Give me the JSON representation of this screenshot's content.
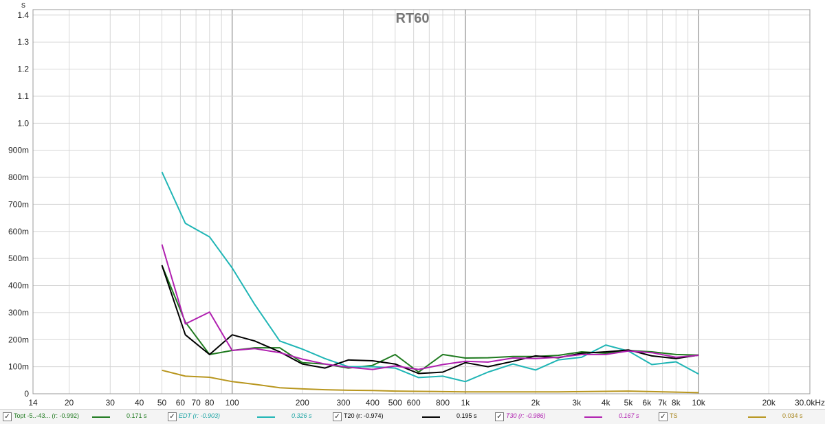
{
  "chart_data": {
    "type": "line",
    "title": "RT60",
    "ylabel": "s",
    "xlabel": "",
    "x_scale": "log",
    "xlim": [
      14,
      30000
    ],
    "ylim": [
      0,
      1.42
    ],
    "grid": true,
    "x_ticks": [
      {
        "v": 14,
        "label": "14"
      },
      {
        "v": 20,
        "label": "20"
      },
      {
        "v": 30,
        "label": "30"
      },
      {
        "v": 40,
        "label": "40"
      },
      {
        "v": 50,
        "label": "50"
      },
      {
        "v": 60,
        "label": "60"
      },
      {
        "v": 70,
        "label": "70"
      },
      {
        "v": 80,
        "label": "80"
      },
      {
        "v": 100,
        "label": "100"
      },
      {
        "v": 200,
        "label": "200"
      },
      {
        "v": 300,
        "label": "300"
      },
      {
        "v": 400,
        "label": "400"
      },
      {
        "v": 500,
        "label": "500"
      },
      {
        "v": 600,
        "label": "600"
      },
      {
        "v": 800,
        "label": "800"
      },
      {
        "v": 1000,
        "label": "1k"
      },
      {
        "v": 2000,
        "label": "2k"
      },
      {
        "v": 3000,
        "label": "3k"
      },
      {
        "v": 4000,
        "label": "4k"
      },
      {
        "v": 5000,
        "label": "5k"
      },
      {
        "v": 6000,
        "label": "6k"
      },
      {
        "v": 7000,
        "label": "7k"
      },
      {
        "v": 8000,
        "label": "8k"
      },
      {
        "v": 10000,
        "label": "10k"
      },
      {
        "v": 20000,
        "label": "20k"
      },
      {
        "v": 30000,
        "label": "30.0kHz"
      }
    ],
    "y_ticks": [
      {
        "v": 0,
        "label": "0"
      },
      {
        "v": 0.1,
        "label": "100m"
      },
      {
        "v": 0.2,
        "label": "200m"
      },
      {
        "v": 0.3,
        "label": "300m"
      },
      {
        "v": 0.4,
        "label": "400m"
      },
      {
        "v": 0.5,
        "label": "500m"
      },
      {
        "v": 0.6,
        "label": "600m"
      },
      {
        "v": 0.7,
        "label": "700m"
      },
      {
        "v": 0.8,
        "label": "800m"
      },
      {
        "v": 0.9,
        "label": "900m"
      },
      {
        "v": 1.0,
        "label": "1.0"
      },
      {
        "v": 1.1,
        "label": "1.1"
      },
      {
        "v": 1.2,
        "label": "1.2"
      },
      {
        "v": 1.3,
        "label": "1.3"
      },
      {
        "v": 1.4,
        "label": "1.4"
      }
    ],
    "x": [
      50,
      63,
      80,
      100,
      125,
      160,
      200,
      250,
      315,
      400,
      500,
      630,
      800,
      1000,
      1250,
      1600,
      2000,
      2500,
      3150,
      4000,
      5000,
      6300,
      8000,
      10000
    ],
    "series": [
      {
        "name": "Topt -5..-43...",
        "color": "#1f7a1f",
        "values": [
          0.475,
          0.265,
          0.145,
          0.16,
          0.17,
          0.17,
          0.115,
          0.11,
          0.095,
          0.105,
          0.145,
          0.08,
          0.145,
          0.132,
          0.133,
          0.138,
          0.138,
          0.142,
          0.155,
          0.15,
          0.16,
          0.155,
          0.145,
          0.143
        ]
      },
      {
        "name": "EDT",
        "color": "#1fb5b5",
        "values": [
          0.82,
          0.63,
          0.58,
          0.465,
          0.33,
          0.195,
          0.165,
          0.13,
          0.1,
          0.1,
          0.095,
          0.06,
          0.065,
          0.045,
          0.08,
          0.11,
          0.088,
          0.125,
          0.135,
          0.18,
          0.158,
          0.108,
          0.118,
          0.073
        ]
      },
      {
        "name": "T20",
        "color": "#000000",
        "values": [
          0.475,
          0.218,
          0.145,
          0.218,
          0.195,
          0.155,
          0.11,
          0.095,
          0.125,
          0.122,
          0.11,
          0.075,
          0.08,
          0.115,
          0.1,
          0.12,
          0.14,
          0.133,
          0.15,
          0.155,
          0.162,
          0.14,
          0.13,
          0.143
        ]
      },
      {
        "name": "T30",
        "color": "#b020b0",
        "values": [
          0.552,
          0.258,
          0.302,
          0.16,
          0.167,
          0.152,
          0.128,
          0.11,
          0.098,
          0.09,
          0.103,
          0.09,
          0.108,
          0.12,
          0.117,
          0.132,
          0.13,
          0.135,
          0.145,
          0.145,
          0.158,
          0.152,
          0.135,
          0.142
        ]
      },
      {
        "name": "TS",
        "color": "#b8961e",
        "values": [
          0.087,
          0.065,
          0.061,
          0.045,
          0.035,
          0.022,
          0.018,
          0.015,
          0.013,
          0.012,
          0.01,
          0.009,
          0.008,
          0.007,
          0.007,
          0.007,
          0.007,
          0.007,
          0.008,
          0.009,
          0.01,
          0.008,
          0.006,
          0.004
        ]
      }
    ]
  },
  "legend": {
    "check_glyph": "✓",
    "items": [
      {
        "label": "Topt -5..-43...",
        "stat": "(r: -0.992)",
        "value": "0.171 s",
        "color": "#1f7a1f",
        "text_color": "#1f7a1f",
        "italic": false
      },
      {
        "label": "EDT",
        "stat": "(r: -0.903)",
        "value": "0.326 s",
        "color": "#1fb5b5",
        "text_color": "#1fa5a5",
        "italic": true
      },
      {
        "label": "T20",
        "stat": "(r: -0.974)",
        "value": "0.195 s",
        "color": "#000000",
        "text_color": "#000000",
        "italic": false
      },
      {
        "label": "T30",
        "stat": "(r: -0.986)",
        "value": "0.167 s",
        "color": "#b020b0",
        "text_color": "#b020b0",
        "italic": true
      },
      {
        "label": "TS",
        "stat": "",
        "value": "0.034 s",
        "color": "#b8961e",
        "text_color": "#a8861e",
        "italic": false
      }
    ]
  }
}
